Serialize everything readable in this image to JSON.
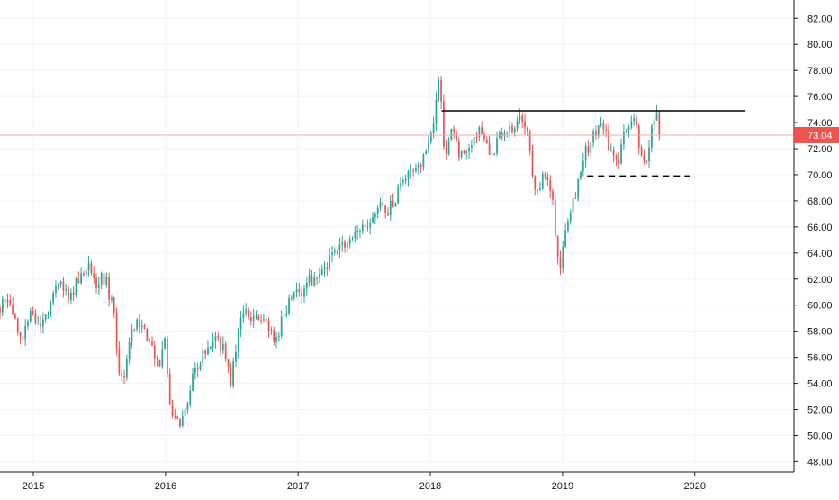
{
  "chart_data": {
    "type": "candlestick",
    "title": "",
    "xlabel": "",
    "ylabel": "",
    "x_range": [
      "2014-10-01",
      "2020-10-01"
    ],
    "ylim": [
      47.2,
      83.4
    ],
    "x_ticks": [
      {
        "date": "2015-01-01",
        "label": "2015"
      },
      {
        "date": "2016-01-01",
        "label": "2016"
      },
      {
        "date": "2017-01-01",
        "label": "2017"
      },
      {
        "date": "2018-01-01",
        "label": "2018"
      },
      {
        "date": "2019-01-01",
        "label": "2019"
      },
      {
        "date": "2020-01-01",
        "label": "2020"
      }
    ],
    "y_ticks": [
      "48.00",
      "50.00",
      "52.00",
      "54.00",
      "56.00",
      "58.00",
      "60.00",
      "62.00",
      "64.00",
      "66.00",
      "68.00",
      "70.00",
      "72.00",
      "74.00",
      "76.00",
      "78.00",
      "80.00",
      "82.00"
    ],
    "grid": true,
    "colors": {
      "up": "#26a69a",
      "down": "#ef5350",
      "grid": "#f0f3fa",
      "axis": "#131722",
      "price_line": "#f6a5a5",
      "price_tag": "#ef5350"
    },
    "last_price": {
      "value": 73.04,
      "label": "73.04"
    },
    "lines": [
      {
        "style": "solid",
        "color": "#000000",
        "y": 74.9,
        "from": "2018-02-01",
        "to": "2020-05-20"
      },
      {
        "style": "dashed",
        "color": "#000000",
        "y": 69.9,
        "from": "2019-03-10",
        "to": "2019-12-20"
      }
    ],
    "anchors": [
      [
        "2014-10-01",
        59.8
      ],
      [
        "2014-10-20",
        60.6
      ],
      [
        "2014-11-10",
        59.0
      ],
      [
        "2014-12-05",
        57.4
      ],
      [
        "2014-12-25",
        59.5
      ],
      [
        "2015-01-20",
        58.0
      ],
      [
        "2015-02-20",
        60.5
      ],
      [
        "2015-03-20",
        61.6
      ],
      [
        "2015-04-10",
        60.6
      ],
      [
        "2015-05-10",
        62.2
      ],
      [
        "2015-06-01",
        62.9
      ],
      [
        "2015-06-25",
        61.8
      ],
      [
        "2015-07-20",
        62.0
      ],
      [
        "2015-08-10",
        59.5
      ],
      [
        "2015-08-24",
        55.2
      ],
      [
        "2015-09-05",
        54.2
      ],
      [
        "2015-09-25",
        57.8
      ],
      [
        "2015-10-15",
        58.6
      ],
      [
        "2015-11-05",
        58.3
      ],
      [
        "2015-11-25",
        56.6
      ],
      [
        "2015-12-10",
        55.3
      ],
      [
        "2015-12-30",
        57.0
      ],
      [
        "2016-01-15",
        52.2
      ],
      [
        "2016-01-29",
        51.0
      ],
      [
        "2016-02-11",
        50.6
      ],
      [
        "2016-02-25",
        52.2
      ],
      [
        "2016-03-20",
        55.0
      ],
      [
        "2016-04-20",
        56.4
      ],
      [
        "2016-05-15",
        57.2
      ],
      [
        "2016-06-05",
        56.8
      ],
      [
        "2016-06-20",
        56.0
      ],
      [
        "2016-06-27",
        53.8
      ],
      [
        "2016-07-20",
        58.2
      ],
      [
        "2016-08-10",
        59.2
      ],
      [
        "2016-09-10",
        58.8
      ],
      [
        "2016-10-10",
        58.4
      ],
      [
        "2016-11-04",
        57.3
      ],
      [
        "2016-11-20",
        59.6
      ],
      [
        "2016-12-20",
        60.5
      ],
      [
        "2017-01-20",
        61.3
      ],
      [
        "2017-02-20",
        62.5
      ],
      [
        "2017-03-20",
        63.1
      ],
      [
        "2017-04-15",
        63.8
      ],
      [
        "2017-05-20",
        65.3
      ],
      [
        "2017-06-20",
        66.0
      ],
      [
        "2017-07-10",
        65.6
      ],
      [
        "2017-08-10",
        67.5
      ],
      [
        "2017-09-05",
        67.1
      ],
      [
        "2017-10-10",
        69.1
      ],
      [
        "2017-11-10",
        70.4
      ],
      [
        "2017-12-10",
        71.2
      ],
      [
        "2018-01-05",
        73.0
      ],
      [
        "2018-01-26",
        77.2
      ],
      [
        "2018-02-05",
        74.5
      ],
      [
        "2018-02-09",
        70.8
      ],
      [
        "2018-03-01",
        73.4
      ],
      [
        "2018-03-25",
        71.5
      ],
      [
        "2018-04-20",
        72.6
      ],
      [
        "2018-05-20",
        73.6
      ],
      [
        "2018-06-20",
        71.6
      ],
      [
        "2018-07-20",
        73.2
      ],
      [
        "2018-08-20",
        73.4
      ],
      [
        "2018-09-10",
        74.4
      ],
      [
        "2018-09-25",
        73.0
      ],
      [
        "2018-10-15",
        69.4
      ],
      [
        "2018-10-30",
        69.1
      ],
      [
        "2018-11-15",
        70.0
      ],
      [
        "2018-12-05",
        67.8
      ],
      [
        "2018-12-24",
        62.3
      ],
      [
        "2019-01-10",
        66.5
      ],
      [
        "2019-02-05",
        68.6
      ],
      [
        "2019-03-01",
        71.5
      ],
      [
        "2019-03-25",
        72.8
      ],
      [
        "2019-04-20",
        74.3
      ],
      [
        "2019-05-10",
        72.0
      ],
      [
        "2019-06-03",
        70.8
      ],
      [
        "2019-06-25",
        73.6
      ],
      [
        "2019-07-20",
        74.7
      ],
      [
        "2019-08-05",
        71.3
      ],
      [
        "2019-08-20",
        70.6
      ],
      [
        "2019-09-05",
        73.6
      ],
      [
        "2019-09-15",
        74.6
      ],
      [
        "2019-09-30",
        73.04
      ]
    ]
  }
}
